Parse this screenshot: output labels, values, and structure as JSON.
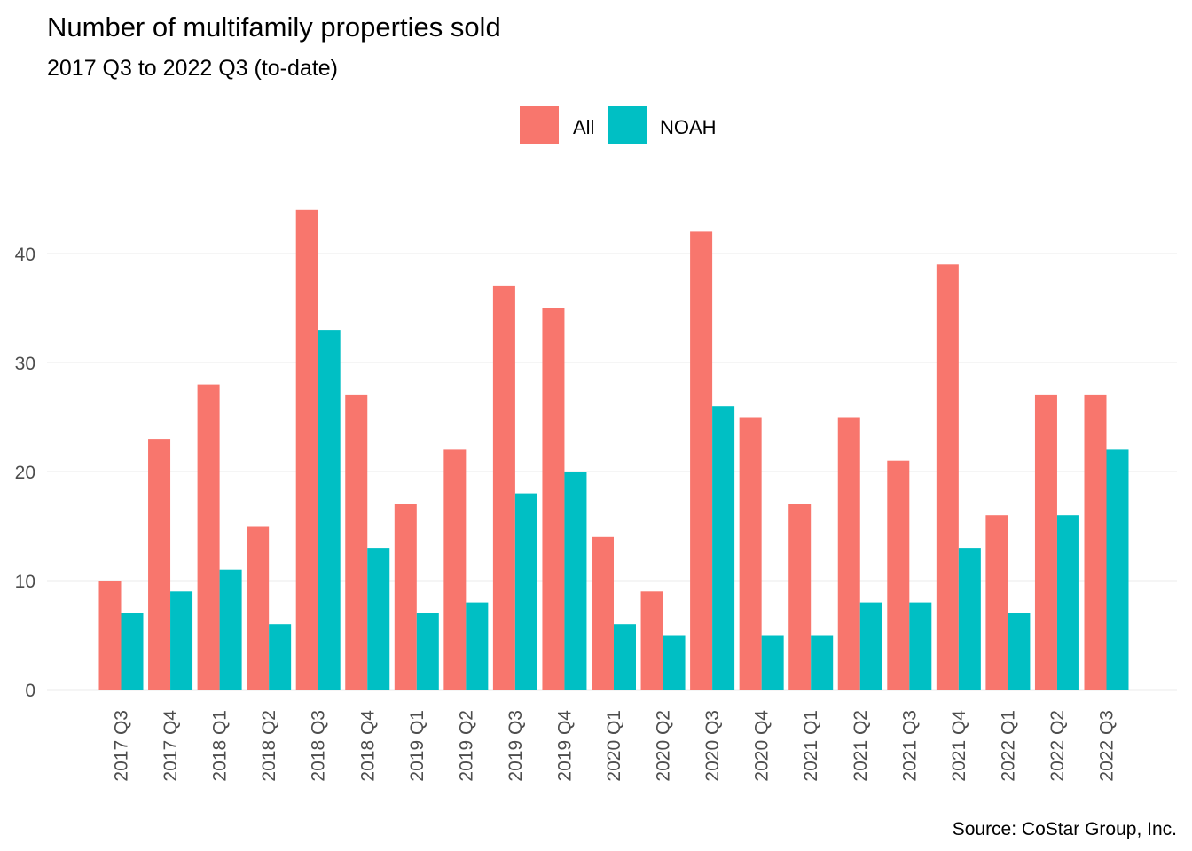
{
  "chart_data": {
    "type": "bar",
    "title": "Number of multifamily properties sold",
    "subtitle": "2017 Q3 to 2022 Q3 (to-date)",
    "caption": "Source: CoStar Group, Inc.",
    "xlabel": "",
    "ylabel": "",
    "ylim": [
      0,
      45
    ],
    "yticks": [
      0,
      10,
      20,
      30,
      40
    ],
    "grid": true,
    "legend_position": "top",
    "categories": [
      "2017 Q3",
      "2017 Q4",
      "2018 Q1",
      "2018 Q2",
      "2018 Q3",
      "2018 Q4",
      "2019 Q1",
      "2019 Q2",
      "2019 Q3",
      "2019 Q4",
      "2020 Q1",
      "2020 Q2",
      "2020 Q3",
      "2020 Q4",
      "2021 Q1",
      "2021 Q2",
      "2021 Q3",
      "2021 Q4",
      "2022 Q1",
      "2022 Q2",
      "2022 Q3"
    ],
    "series": [
      {
        "name": "All",
        "color": "#F8766D",
        "values": [
          10,
          23,
          28,
          15,
          44,
          27,
          17,
          22,
          37,
          35,
          14,
          9,
          42,
          25,
          17,
          25,
          21,
          39,
          16,
          27,
          27
        ]
      },
      {
        "name": "NOAH",
        "color": "#00BFC4",
        "values": [
          7,
          9,
          11,
          6,
          33,
          13,
          7,
          8,
          18,
          20,
          6,
          5,
          26,
          5,
          5,
          8,
          8,
          13,
          7,
          16,
          22
        ]
      }
    ]
  }
}
